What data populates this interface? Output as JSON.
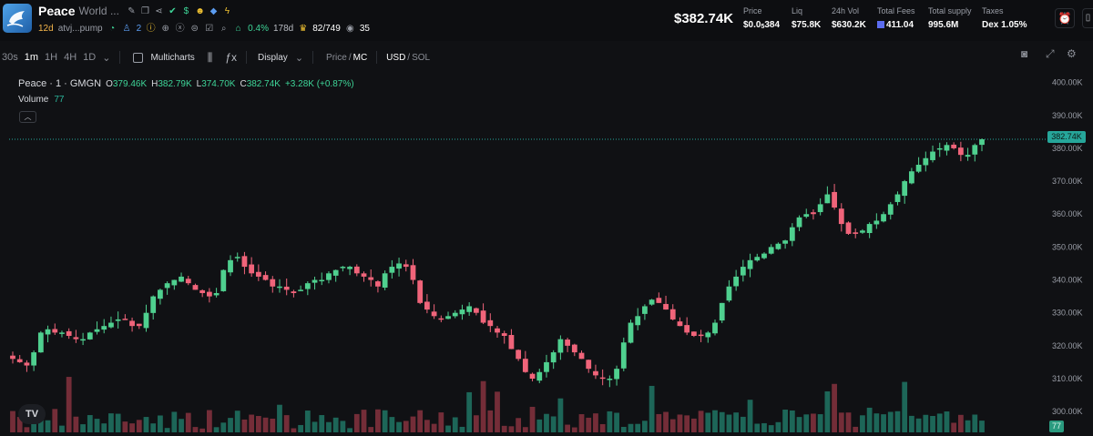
{
  "header": {
    "token_name": "Peace",
    "token_full_name": "World ...",
    "age": "12d",
    "address": "atvj...pump",
    "holders_count": "2",
    "top10_pct": "0.4%",
    "age_days": "178d",
    "kol_count": "82/749",
    "watchers": "35",
    "market_cap": "$382.74K",
    "stats": [
      {
        "label": "Price",
        "value_prefix": "$0.0",
        "value_sub": "5",
        "value_suffix": "384"
      },
      {
        "label": "Liq",
        "value": "$75.8K"
      },
      {
        "label": "24h Vol",
        "value": "$630.2K"
      },
      {
        "label": "Total Fees",
        "value": "411.04"
      },
      {
        "label": "Total supply",
        "value": "995.6M"
      },
      {
        "label": "Taxes",
        "value": "Dex 1.05%"
      }
    ],
    "icons": [
      "edit-icon",
      "copy-icon",
      "share-icon",
      "verified-icon",
      "money-icon",
      "people-icon",
      "shield-icon",
      "bolt-icon"
    ]
  },
  "toolbar": {
    "intervals": [
      "30s",
      "1m",
      "1H",
      "4H",
      "1D"
    ],
    "active_interval": "1m",
    "multicharts_label": "Multicharts",
    "display_label": "Display",
    "price_label": "Price",
    "mc_label": "MC",
    "usd_label": "USD",
    "sol_label": "SOL"
  },
  "legend": {
    "name": "Peace · 1 · GMGN",
    "open_key": "O",
    "open": "379.46K",
    "high_key": "H",
    "high": "382.79K",
    "low_key": "L",
    "low": "374.70K",
    "close_key": "C",
    "close": "382.74K",
    "change": "+3.28K (+0.87%)",
    "volume_label": "Volume",
    "volume_value": "77"
  },
  "chart_data": {
    "type": "candlestick",
    "y_axis_ticks": [
      "400.00K",
      "390.00K",
      "380.00K",
      "370.00K",
      "360.00K",
      "350.00K",
      "340.00K",
      "330.00K",
      "320.00K",
      "310.00K",
      "300.00K"
    ],
    "y_unit": "K",
    "ylim": [
      297,
      401
    ],
    "last_price_label": "382.74K",
    "last_price": 382.74,
    "last_volume_label": "77",
    "up_color": "#4fd08f",
    "down_color": "#f0647a",
    "vol_up_color": "#1f6b5c",
    "vol_down_color": "#7a2f3a",
    "close_path": [
      316,
      315,
      314,
      318,
      324,
      325,
      324,
      324,
      323,
      322,
      322,
      324,
      325,
      326,
      327,
      328,
      328,
      326,
      326,
      330,
      335,
      337,
      339,
      340,
      341,
      339,
      337,
      336,
      335,
      336,
      343,
      346,
      347,
      344,
      342,
      341,
      340,
      338,
      338,
      337,
      336,
      337,
      339,
      340,
      340,
      342,
      343,
      344,
      344,
      342,
      341,
      340,
      338,
      342,
      344,
      345,
      344,
      340,
      333,
      331,
      329,
      328,
      329,
      330,
      331,
      332,
      330,
      327,
      326,
      324,
      323,
      319,
      316,
      312,
      310,
      312,
      315,
      318,
      322,
      320,
      318,
      316,
      313,
      311,
      310,
      310,
      313,
      321,
      327,
      329,
      332,
      334,
      333,
      331,
      328,
      326,
      324,
      323,
      323,
      324,
      327,
      333,
      338,
      341,
      344,
      346,
      347,
      348,
      350,
      351,
      352,
      356,
      359,
      360,
      360,
      363,
      366,
      362,
      357,
      354,
      354,
      355,
      357,
      358,
      360,
      363,
      366,
      370,
      373,
      375,
      377,
      379,
      380,
      381,
      380,
      378,
      378,
      381,
      382.74
    ]
  }
}
